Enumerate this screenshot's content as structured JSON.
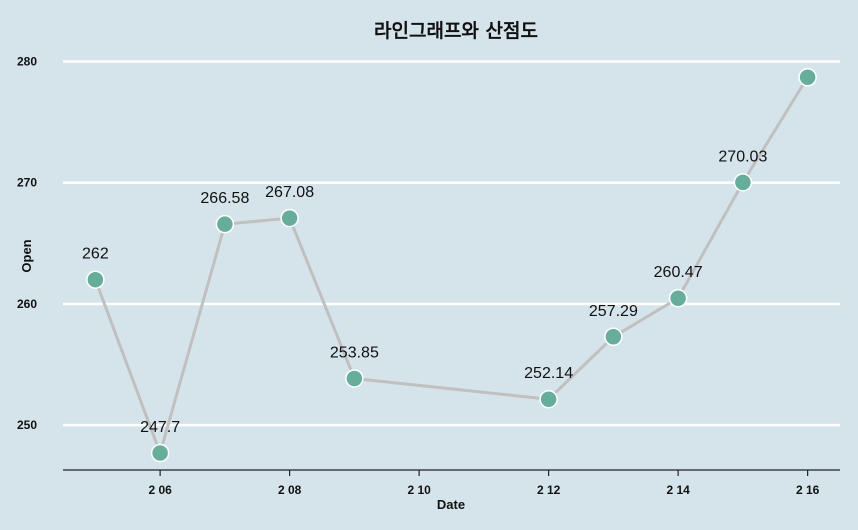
{
  "chart_data": {
    "type": "line",
    "title": "라인그래프와 산점도",
    "xlabel": "Date",
    "ylabel": "Open",
    "x": [
      "2 05",
      "2 06",
      "2 07",
      "2 08",
      "2 09",
      "2 12",
      "2 13",
      "2 14",
      "2 15",
      "2 16"
    ],
    "x_day": [
      5,
      6,
      7,
      8,
      9,
      12,
      13,
      14,
      15,
      16
    ],
    "series": [
      {
        "values": [
          262,
          247.7,
          266.58,
          267.08,
          253.85,
          252.14,
          257.29,
          260.47,
          270.03,
          278.7
        ],
        "data_labels": [
          "262",
          "247.7",
          "266.58",
          "267.08",
          "253.85",
          "252.14",
          "257.29",
          "260.47",
          "270.03",
          ""
        ]
      }
    ],
    "xticks": [
      {
        "day": 6,
        "label": "2 06"
      },
      {
        "day": 8,
        "label": "2 08"
      },
      {
        "day": 10,
        "label": "2 10"
      },
      {
        "day": 12,
        "label": "2 12"
      },
      {
        "day": 14,
        "label": "2 14"
      },
      {
        "day": 16,
        "label": "2 16"
      }
    ],
    "yticks": [
      250,
      260,
      270,
      280
    ],
    "xlim": [
      4.5,
      16.5
    ],
    "ylim": [
      246.3,
      282.6
    ],
    "grid": "horizontal",
    "colors": {
      "background": "#d5e4eb",
      "line": "#c0c0c0",
      "point": "#66ad9b",
      "point_stroke": "#ffffff",
      "grid": "#ffffff"
    }
  }
}
